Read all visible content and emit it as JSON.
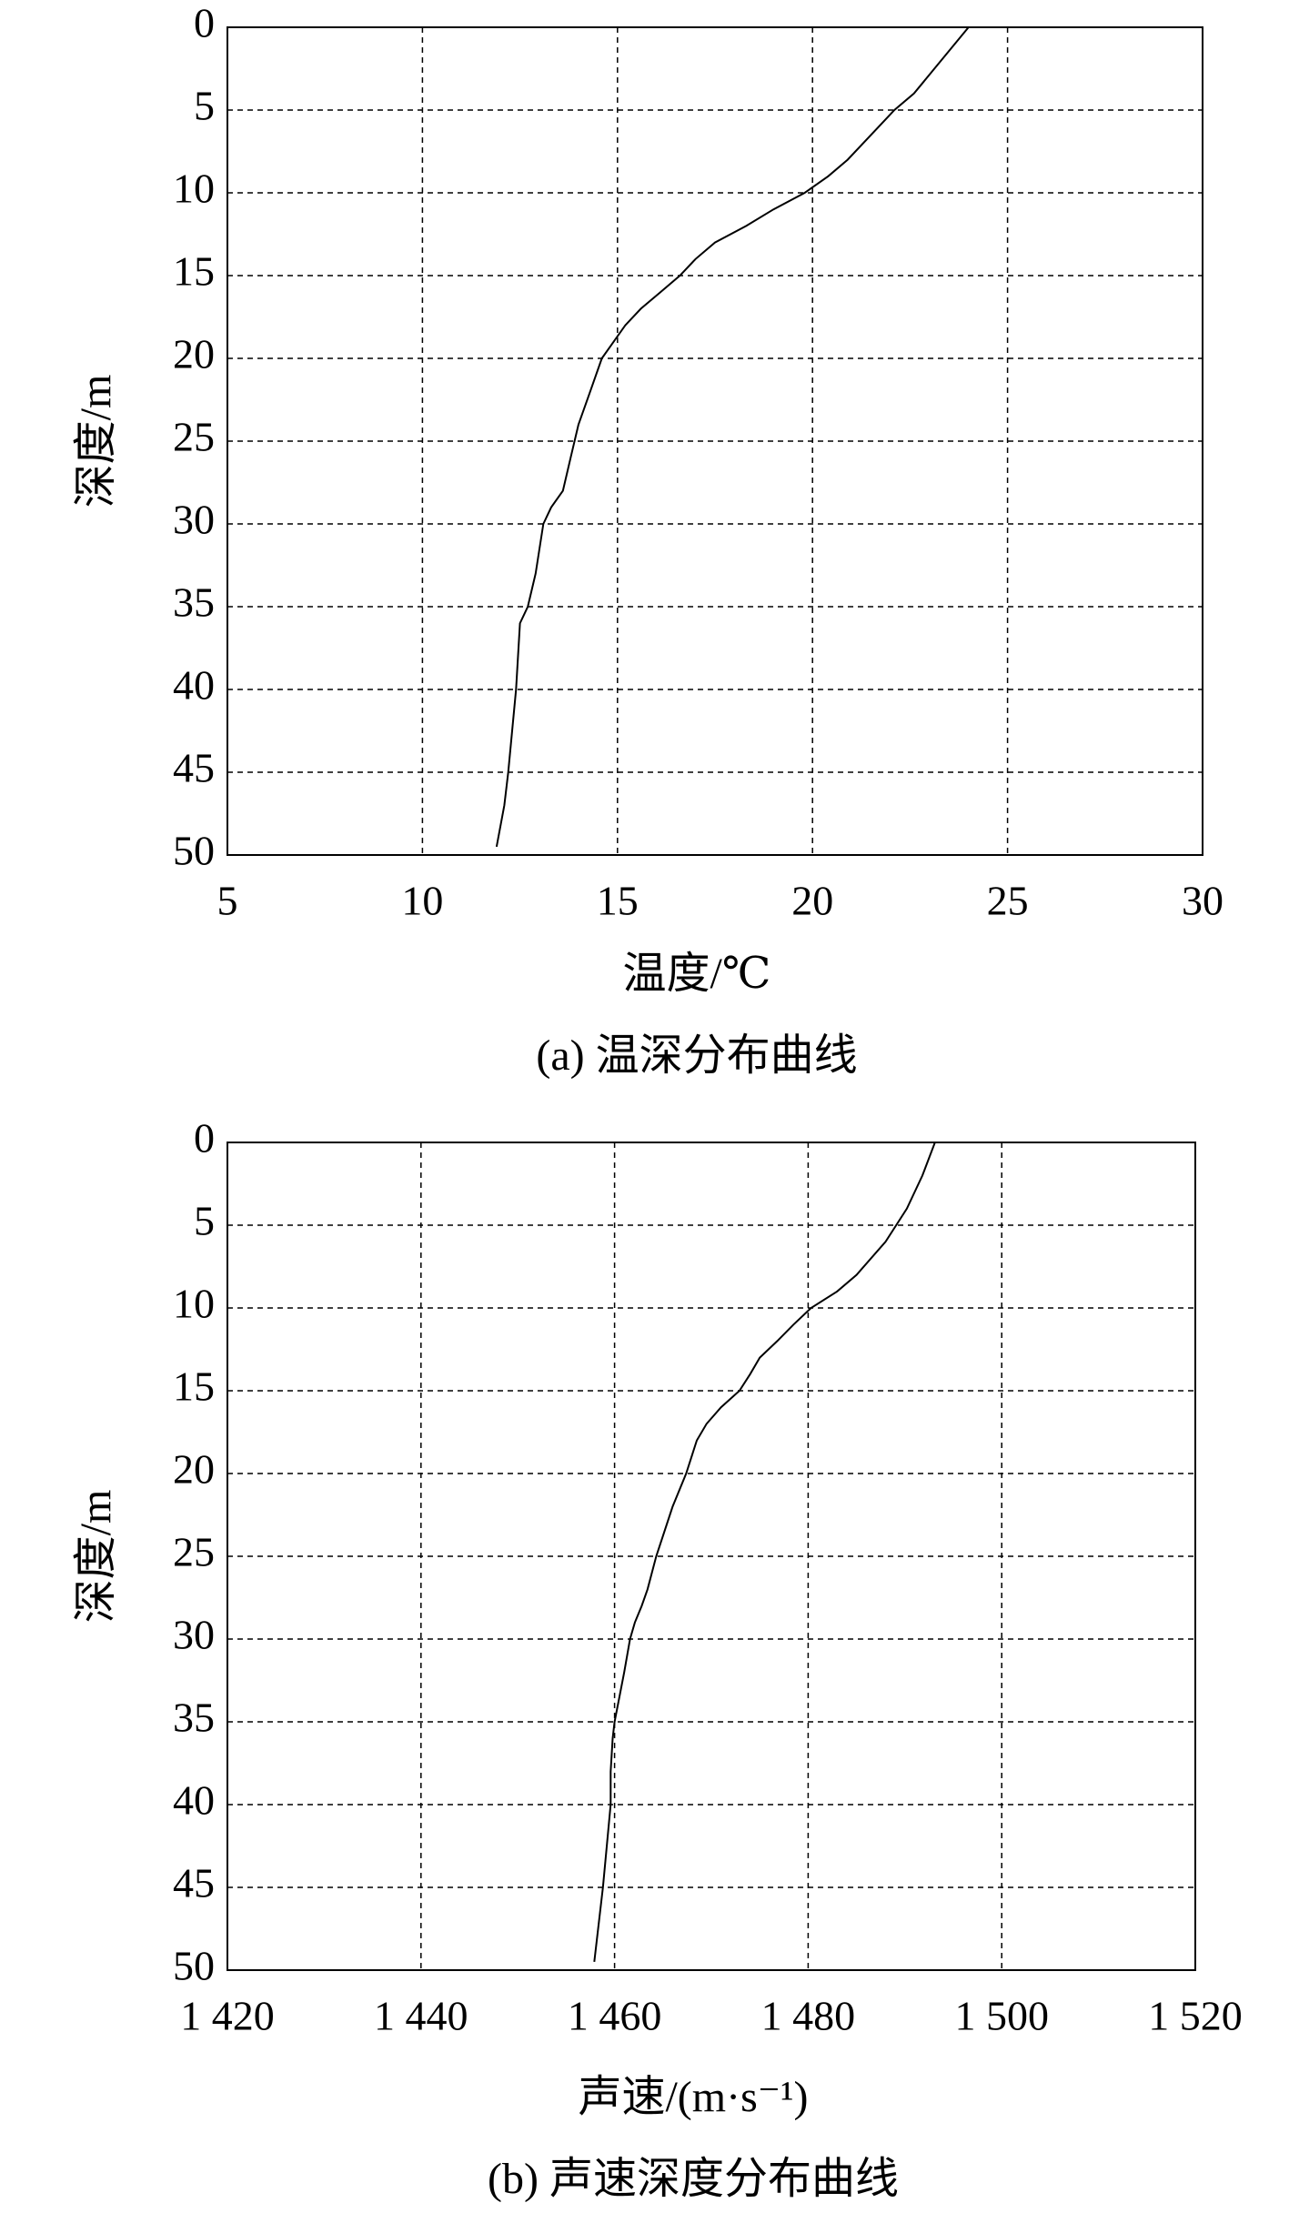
{
  "chart_data": [
    {
      "type": "line",
      "caption": "(a) 温深分布曲线",
      "xlabel": "温度/℃",
      "ylabel": "深度/m",
      "xlim": [
        5,
        30
      ],
      "xticks": [
        5,
        10,
        15,
        20,
        25,
        30
      ],
      "ylim": [
        0,
        50
      ],
      "yticks": [
        0,
        5,
        10,
        15,
        20,
        25,
        30,
        35,
        40,
        45,
        50
      ],
      "y_inverted": true,
      "grid": true,
      "series": [
        {
          "color": "#000000",
          "x": [
            24.0,
            23.3,
            22.6,
            22.1,
            21.7,
            20.9,
            20.4,
            19.8,
            19.0,
            18.3,
            17.5,
            17.0,
            16.6,
            16.1,
            15.6,
            15.2,
            14.9,
            14.6,
            14.3,
            14.0,
            13.8,
            13.6,
            13.3,
            13.1,
            12.9,
            12.7,
            12.5,
            12.4,
            12.2,
            12.1,
            11.9
          ],
          "y": [
            0,
            2,
            4,
            5,
            6,
            8,
            9,
            10,
            11,
            12,
            13,
            14,
            15,
            16,
            17,
            18,
            19,
            20,
            22,
            24,
            26,
            28,
            29,
            30,
            33,
            35,
            36,
            40,
            45,
            47,
            49.5
          ]
        }
      ]
    },
    {
      "type": "line",
      "caption": "(b) 声速深度分布曲线",
      "xlabel": "声速/(m·s⁻¹)",
      "ylabel": "深度/m",
      "xlim": [
        1420,
        1520
      ],
      "xticks": [
        {
          "value": 1420,
          "label": "1 420"
        },
        {
          "value": 1440,
          "label": "1 440"
        },
        {
          "value": 1460,
          "label": "1 460"
        },
        {
          "value": 1480,
          "label": "1 480"
        },
        {
          "value": 1500,
          "label": "1 500"
        },
        {
          "value": 1520,
          "label": "1 520"
        }
      ],
      "ylim": [
        0,
        50
      ],
      "yticks": [
        0,
        5,
        10,
        15,
        20,
        25,
        30,
        35,
        40,
        45,
        50
      ],
      "y_inverted": true,
      "grid": true,
      "series": [
        {
          "color": "#000000",
          "x": [
            1493.1,
            1491.8,
            1490.2,
            1489.1,
            1488.0,
            1485.0,
            1483.0,
            1480.3,
            1478.5,
            1476.8,
            1475.0,
            1474.0,
            1472.9,
            1471.0,
            1469.5,
            1468.5,
            1467.4,
            1466.0,
            1464.3,
            1463.4,
            1462.8,
            1462.1,
            1461.6,
            1461.0,
            1460.0,
            1459.8,
            1459.6,
            1459.6,
            1458.8,
            1457.9
          ],
          "y": [
            0,
            2,
            4,
            5,
            6,
            8,
            9,
            10,
            11,
            12,
            13,
            14,
            15,
            16,
            17,
            18,
            20,
            22,
            25,
            27,
            28,
            29,
            30,
            32,
            35,
            36,
            38,
            40,
            45,
            49.5
          ]
        }
      ]
    }
  ]
}
